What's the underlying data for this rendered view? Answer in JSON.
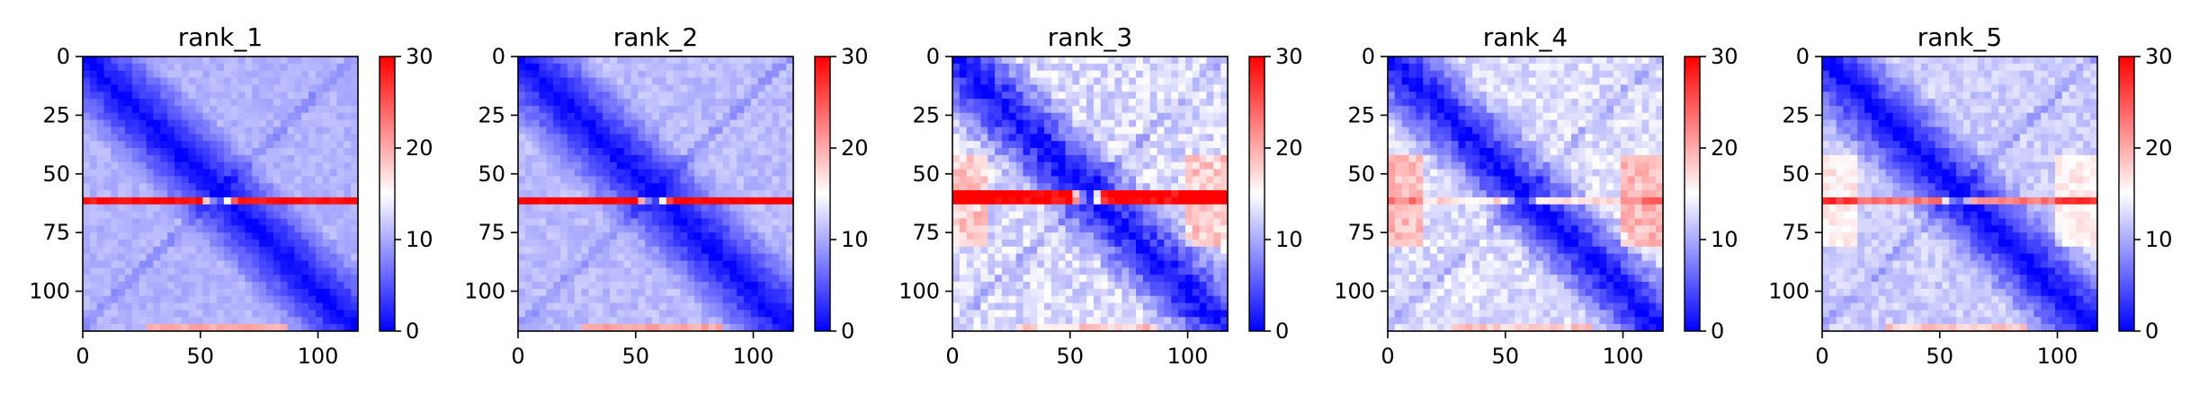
{
  "colors": {
    "cmap": [
      "#0000ff",
      "#ffffff",
      "#ff0000"
    ],
    "axis": "#000000",
    "background": "#ffffff"
  },
  "chart_data": [
    {
      "type": "heatmap",
      "title": "rank_1",
      "xlabel": "",
      "ylabel": "",
      "size": 117,
      "xlim": [
        0,
        117
      ],
      "ylim": [
        117,
        0
      ],
      "x_ticks": [
        0,
        50,
        100
      ],
      "y_ticks": [
        0,
        25,
        50,
        75,
        100
      ],
      "colorbar": {
        "min": 0,
        "max": 30,
        "ticks": [
          0,
          10,
          20,
          30
        ],
        "cmap": "bwr"
      },
      "pattern": {
        "diag": 0,
        "offdiag": 10.5,
        "grow": 0.035,
        "stripe_rows": [
          60,
          62
        ],
        "stripe_value": 29,
        "edge_value": 20,
        "side_bump": 0,
        "noise": 1.0
      }
    },
    {
      "type": "heatmap",
      "title": "rank_2",
      "xlabel": "",
      "ylabel": "",
      "size": 117,
      "xlim": [
        0,
        117
      ],
      "ylim": [
        117,
        0
      ],
      "x_ticks": [
        0,
        50,
        100
      ],
      "y_ticks": [
        0,
        25,
        50,
        75,
        100
      ],
      "colorbar": {
        "min": 0,
        "max": 30,
        "ticks": [
          0,
          10,
          20,
          30
        ],
        "cmap": "bwr"
      },
      "pattern": {
        "diag": 0,
        "offdiag": 11,
        "grow": 0.035,
        "stripe_rows": [
          60,
          62
        ],
        "stripe_value": 30,
        "edge_value": 20,
        "side_bump": 0,
        "noise": 1.2
      }
    },
    {
      "type": "heatmap",
      "title": "rank_3",
      "xlabel": "",
      "ylabel": "",
      "size": 117,
      "xlim": [
        0,
        117
      ],
      "ylim": [
        117,
        0
      ],
      "x_ticks": [
        0,
        50,
        100
      ],
      "y_ticks": [
        0,
        25,
        50,
        75,
        100
      ],
      "colorbar": {
        "min": 0,
        "max": 30,
        "ticks": [
          0,
          10,
          20,
          30
        ],
        "cmap": "bwr"
      },
      "pattern": {
        "diag": 0,
        "offdiag": 13,
        "grow": 0.045,
        "stripe_rows": [
          59,
          63
        ],
        "stripe_value": 30,
        "edge_value": 18,
        "side_bump": 5,
        "noise": 2.5
      }
    },
    {
      "type": "heatmap",
      "title": "rank_4",
      "xlabel": "",
      "ylabel": "",
      "size": 117,
      "xlim": [
        0,
        117
      ],
      "ylim": [
        117,
        0
      ],
      "x_ticks": [
        0,
        50,
        100
      ],
      "y_ticks": [
        0,
        25,
        50,
        75,
        100
      ],
      "colorbar": {
        "min": 0,
        "max": 30,
        "ticks": [
          0,
          10,
          20,
          30
        ],
        "cmap": "bwr"
      },
      "pattern": {
        "diag": 0,
        "offdiag": 13,
        "grow": 0.045,
        "stripe_rows": [
          60,
          62
        ],
        "stripe_value": 17,
        "edge_value": 18,
        "side_bump": 6,
        "noise": 2.0
      }
    },
    {
      "type": "heatmap",
      "title": "rank_5",
      "xlabel": "",
      "ylabel": "",
      "size": 117,
      "xlim": [
        0,
        117
      ],
      "ylim": [
        117,
        0
      ],
      "x_ticks": [
        0,
        50,
        100
      ],
      "y_ticks": [
        0,
        25,
        50,
        75,
        100
      ],
      "colorbar": {
        "min": 0,
        "max": 30,
        "ticks": [
          0,
          10,
          20,
          30
        ],
        "cmap": "bwr"
      },
      "pattern": {
        "diag": 0,
        "offdiag": 12,
        "grow": 0.04,
        "stripe_rows": [
          60,
          62
        ],
        "stripe_value": 23,
        "edge_value": 18,
        "side_bump": 4,
        "noise": 1.6
      }
    }
  ]
}
